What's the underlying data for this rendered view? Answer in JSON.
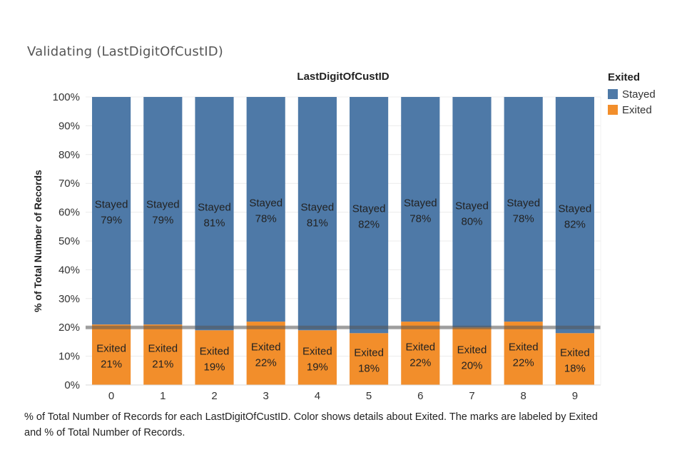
{
  "title": "Validating (LastDigitOfCustID)",
  "caption": "% of Total Number of Records for each LastDigitOfCustID.  Color shows details about Exited.  The marks are labeled by Exited and % of Total Number of Records.",
  "legend": {
    "title": "Exited",
    "items": [
      {
        "label": "Stayed",
        "color": "#4e79a7"
      },
      {
        "label": "Exited",
        "color": "#f28e2b"
      }
    ]
  },
  "chart_data": {
    "type": "bar",
    "stacked": true,
    "header": "LastDigitOfCustID",
    "ylabel": "% of Total Number of Records",
    "categories": [
      "0",
      "1",
      "2",
      "3",
      "4",
      "5",
      "6",
      "7",
      "8",
      "9"
    ],
    "series": [
      {
        "name": "Exited",
        "color": "#f28e2b",
        "values": [
          21,
          21,
          19,
          22,
          19,
          18,
          22,
          20,
          22,
          18
        ],
        "labels": [
          "21%",
          "21%",
          "19%",
          "22%",
          "19%",
          "18%",
          "22%",
          "20%",
          "22%",
          "18%"
        ]
      },
      {
        "name": "Stayed",
        "color": "#4e79a7",
        "values": [
          79,
          79,
          81,
          78,
          81,
          82,
          78,
          80,
          78,
          82
        ],
        "labels": [
          "79%",
          "79%",
          "81%",
          "78%",
          "81%",
          "82%",
          "78%",
          "80%",
          "78%",
          "82%"
        ]
      }
    ],
    "ylim": [
      0,
      100
    ],
    "yticks": [
      "0%",
      "10%",
      "20%",
      "30%",
      "40%",
      "50%",
      "60%",
      "70%",
      "80%",
      "90%",
      "100%"
    ],
    "yticks_values": [
      0,
      10,
      20,
      30,
      40,
      50,
      60,
      70,
      80,
      90,
      100
    ],
    "reference_line": 20,
    "grid": true,
    "legend_position": "top-right"
  }
}
